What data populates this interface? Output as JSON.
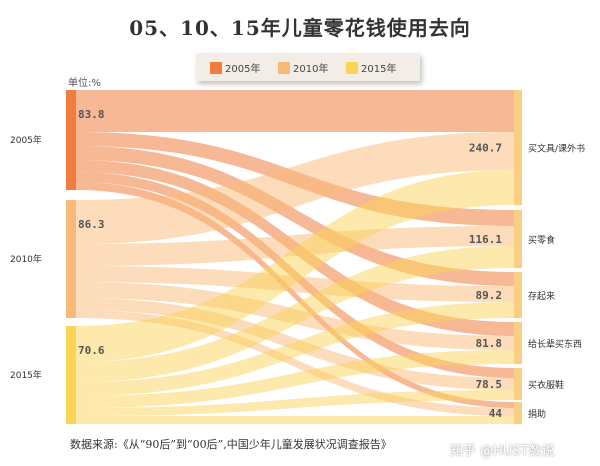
{
  "title": "05、10、15年儿童零花钱使用去向",
  "unit_label": "单位:%",
  "source": "数据来源:《从“90后”到“00后”,中国少年儿童发展状况调查报告》",
  "watermark": "知乎 @HUST数说",
  "colors": {
    "2005年": "#f07d3e",
    "2010年": "#f9b978",
    "2015年": "#f9d457"
  },
  "chart_data": {
    "type": "sankey",
    "title": "05、10、15年儿童零花钱使用去向",
    "unit": "单位:%",
    "sources": [
      {
        "name": "2005年",
        "total": 83.8
      },
      {
        "name": "2010年",
        "total": 86.3
      },
      {
        "name": "2015年",
        "total": 70.6
      }
    ],
    "targets": [
      {
        "name": "买文具/课外书",
        "total": 240.7
      },
      {
        "name": "买零食",
        "total": 116.1
      },
      {
        "name": "存起来",
        "total": 89.2
      },
      {
        "name": "给长辈买东西",
        "total": 81.8
      },
      {
        "name": "买衣服鞋",
        "total": 78.5
      },
      {
        "name": "捐助",
        "total": 44
      }
    ],
    "legend": [
      "2005年",
      "2010年",
      "2015年"
    ],
    "legend_position": "top"
  }
}
